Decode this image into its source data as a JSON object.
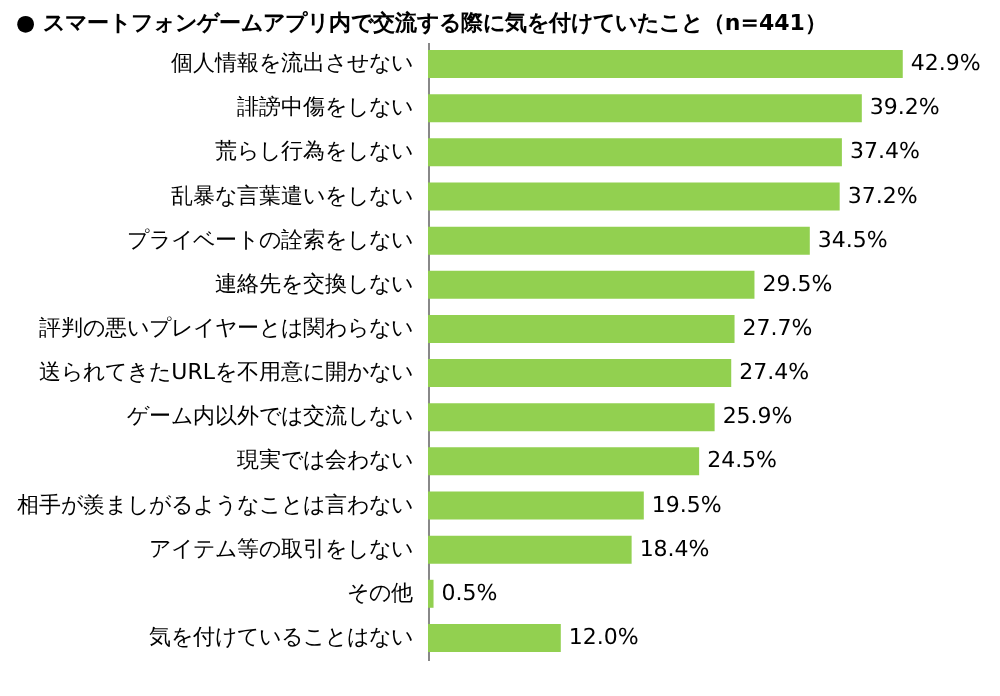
{
  "chart_data": {
    "type": "bar",
    "orientation": "horizontal",
    "title": "●  スマートフォンゲームアプリ内で交流する際に気を付けていたこと（n=441）",
    "categories": [
      "個人情報を流出させない",
      "誹謗中傷をしない",
      "荒らし行為をしない",
      "乱暴な言葉遣いをしない",
      "プライベートの詮索をしない",
      "連絡先を交換しない",
      "評判の悪いプレイヤーとは関わらない",
      "送られてきたURLを不用意に開かない",
      "ゲーム内以外では交流しない",
      "現実では会わない",
      "相手が羨ましがるようなことは言わない",
      "アイテム等の取引をしない",
      "その他",
      "気を付けていることはない"
    ],
    "values": [
      42.9,
      39.2,
      37.4,
      37.2,
      34.5,
      29.5,
      27.7,
      27.4,
      25.9,
      24.5,
      19.5,
      18.4,
      0.5,
      12.0
    ],
    "value_labels": [
      "42.9%",
      "39.2%",
      "37.4%",
      "37.2%",
      "34.5%",
      "29.5%",
      "27.7%",
      "27.4%",
      "25.9%",
      "24.5%",
      "19.5%",
      "18.4%",
      "0.5%",
      "12.0%"
    ],
    "color": "#92d050"
  }
}
